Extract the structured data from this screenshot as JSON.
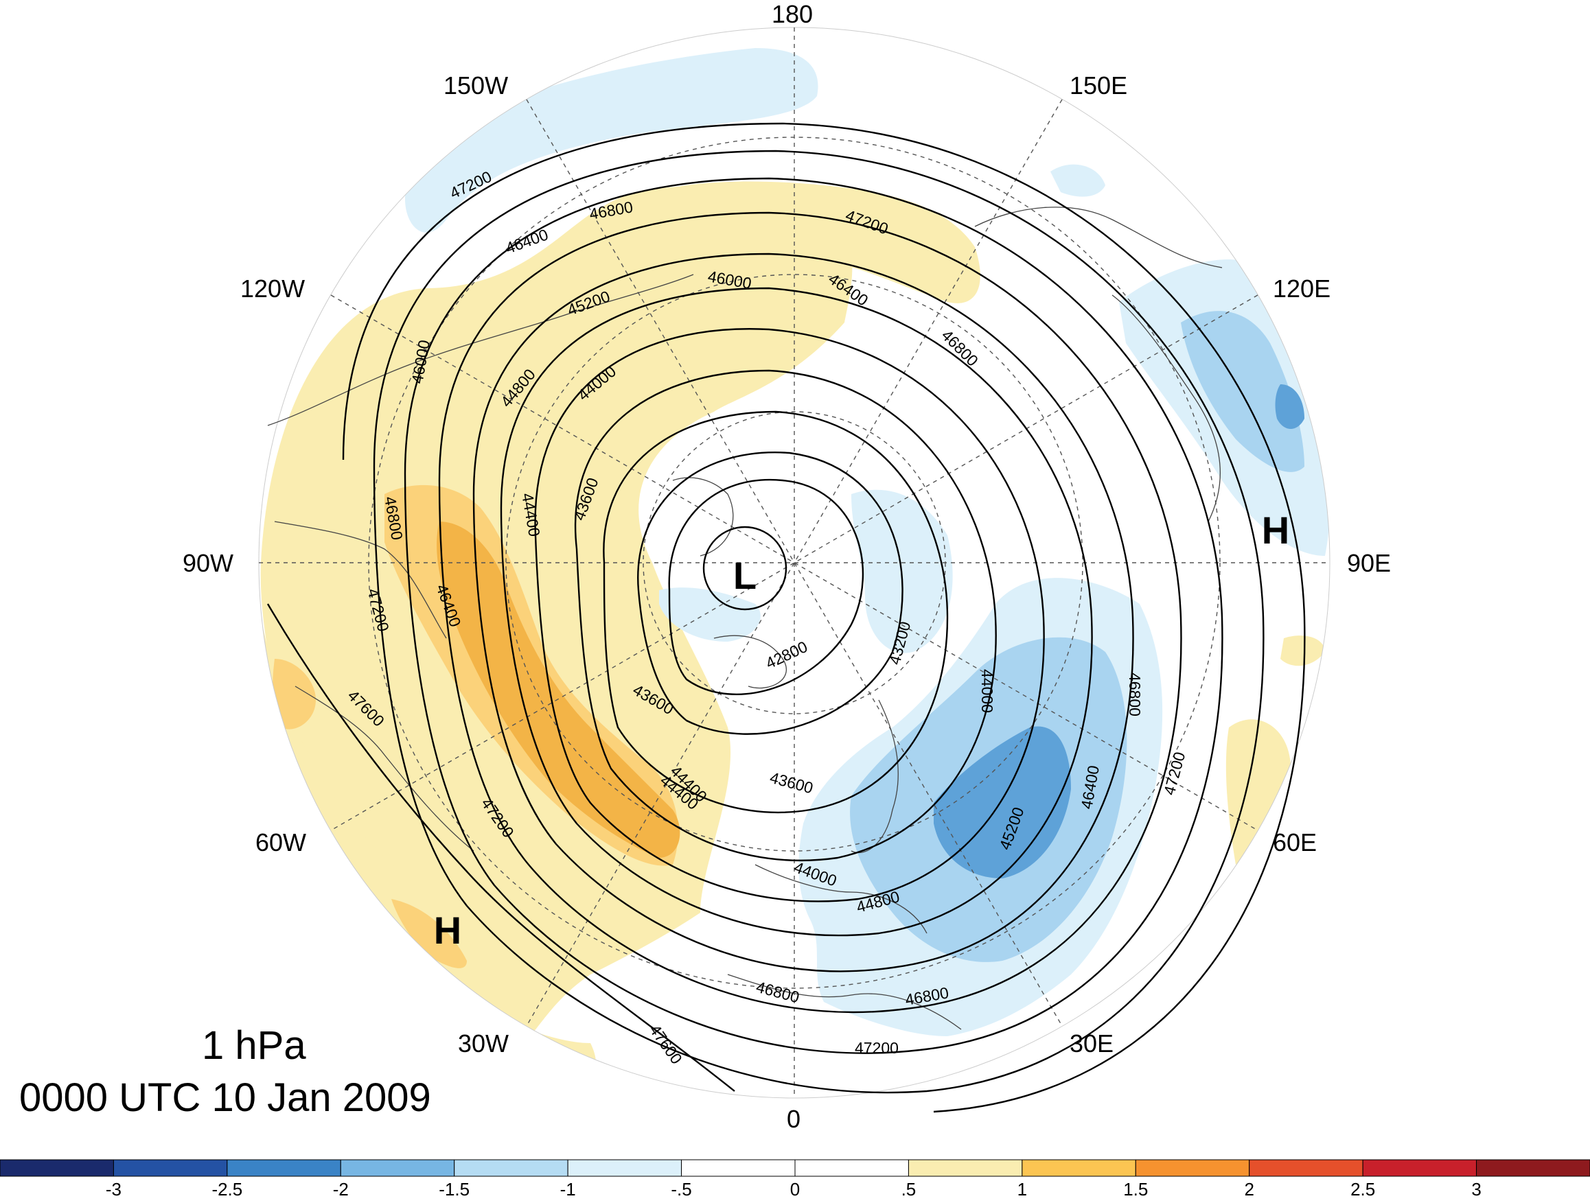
{
  "level": "1 hPa",
  "time": "0000 UTC 10 Jan 2009",
  "longitudes": {
    "top": "180",
    "bottom": "0",
    "left": "90W",
    "right": "90E",
    "upper_left_1": "150W",
    "upper_left_2": "120W",
    "upper_right_1": "150E",
    "upper_right_2": "120E",
    "lower_left_1": "60W",
    "lower_left_2": "30W",
    "lower_right_1": "60E",
    "lower_right_2": "30E"
  },
  "centers": {
    "low": "L",
    "high_1": "H",
    "high_2": "H"
  },
  "contour_labels": [
    "47200",
    "46800",
    "46400",
    "46000",
    "45200",
    "44800",
    "44400",
    "44000",
    "43600",
    "43200",
    "42800",
    "47600",
    "46800",
    "47200",
    "46400",
    "46000",
    "44000",
    "45200",
    "46400",
    "46800",
    "47200",
    "44400",
    "44800",
    "46800",
    "47200",
    "47600",
    "43600",
    "46800",
    "47200",
    "46800",
    "47200",
    "46400",
    "43600",
    "44400",
    "44000"
  ],
  "colorbar": {
    "labels": [
      "-3",
      "-2.5",
      "-2",
      "-1.5",
      "-1",
      "-.5",
      "0",
      ".5",
      "1",
      "1.5",
      "2",
      "2.5",
      "3"
    ],
    "colors": [
      "#1a2a6c",
      "#2452a4",
      "#3a83c6",
      "#77b6e3",
      "#b5dcf3",
      "#dcf0fa",
      "#ffffff",
      "#ffffff",
      "#faedb1",
      "#fcc552",
      "#f6922f",
      "#e5502b",
      "#c8202b",
      "#8e1a1e"
    ]
  },
  "colors": {
    "positive_light": "#faedb1",
    "positive_mid": "#fbd27a",
    "positive_dark": "#f3b447",
    "negative_light": "#dcf0fa",
    "negative_mid": "#a9d4f0",
    "negative_dark": "#5ea2d8"
  }
}
